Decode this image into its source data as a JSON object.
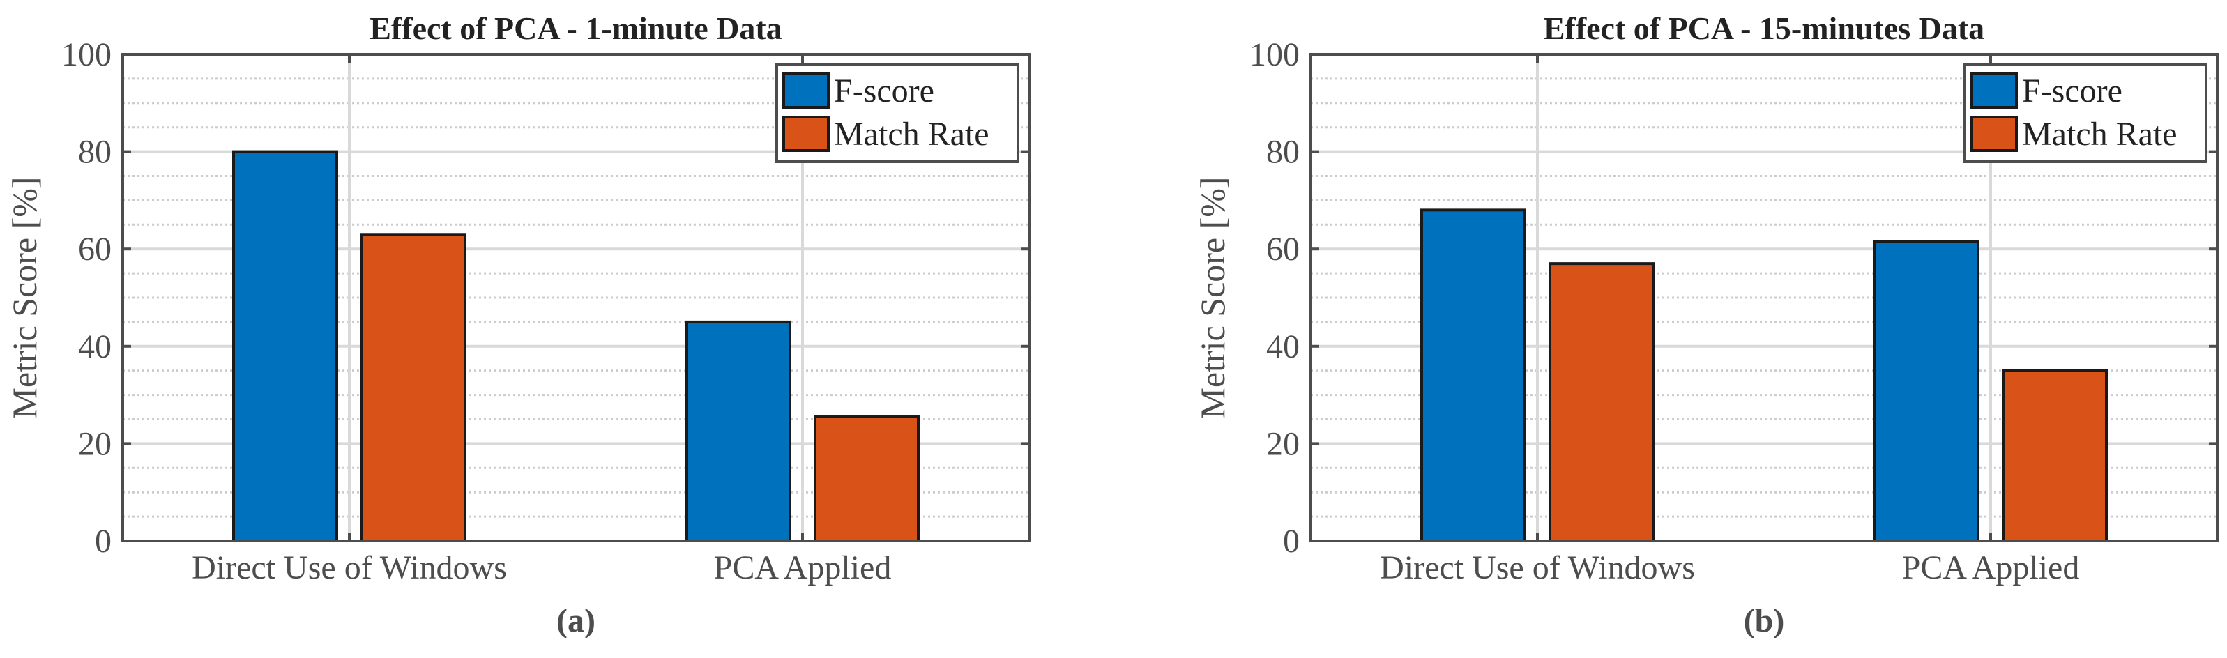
{
  "colors": {
    "fscore": "#0072BD",
    "match": "#D95319",
    "axis": "#4d4d4d",
    "grid_major": "#d9d9d9",
    "grid_minor": "#cccccc"
  },
  "chart_data": [
    {
      "type": "bar",
      "title": "Effect of PCA - 1-minute Data",
      "subcaption": "(a)",
      "ylabel": "Metric Score [%]",
      "xlabel": "",
      "ylim": [
        0,
        100
      ],
      "yticks": [
        "0",
        "20",
        "40",
        "60",
        "80",
        "100"
      ],
      "categories": [
        "Direct Use of Windows",
        "PCA Applied"
      ],
      "legend_position": "top-right",
      "grid": true,
      "series": [
        {
          "name": "F-score",
          "values": [
            80,
            45
          ]
        },
        {
          "name": "Match Rate",
          "values": [
            63,
            25.5
          ]
        }
      ]
    },
    {
      "type": "bar",
      "title": "Effect of PCA - 15-minutes Data",
      "subcaption": "(b)",
      "ylabel": "Metric Score [%]",
      "xlabel": "",
      "ylim": [
        0,
        100
      ],
      "yticks": [
        "0",
        "20",
        "40",
        "60",
        "80",
        "100"
      ],
      "categories": [
        "Direct Use of Windows",
        "PCA Applied"
      ],
      "legend_position": "top-right",
      "grid": true,
      "series": [
        {
          "name": "F-score",
          "values": [
            68,
            61.5
          ]
        },
        {
          "name": "Match Rate",
          "values": [
            57,
            35
          ]
        }
      ]
    }
  ]
}
